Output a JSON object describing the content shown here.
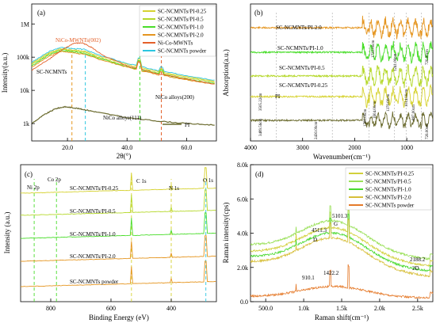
{
  "colors": {
    "pi": "#6b6b2f",
    "sc025": "#d6d230",
    "sc05": "#b5d82a",
    "sc10": "#49dd2a",
    "sc20": "#e5951f",
    "nico": "#e4602a",
    "powder": "#2cc6e0",
    "raman025": "#d2d03c",
    "raman05": "#99e057",
    "raman10": "#49d92f",
    "raman20": "#d7bf3a",
    "ramanPowder": "#e57a2a"
  },
  "chart_data": [
    {
      "type": "line",
      "panel": "(a)",
      "xlabel": "2θ(°)",
      "ylabel": "Intensity(a.u.)",
      "yscale": "log",
      "xlim": [
        8,
        70
      ],
      "xticks": [
        "20.0",
        "40.0",
        "60.0"
      ],
      "yticks": [
        "1k",
        "10k",
        "100k",
        "1M"
      ],
      "legend": [
        "SC-NCMNTs/PI-0.25",
        "SC-NCMNTs/PI-0.5",
        "SC-NCMNTs/PI-1.0",
        "SC-NCMNTs/PI-2.0",
        "Ni-Co-MWNTs",
        "SC-NCMNTs powder"
      ],
      "legend_position": "top-right",
      "annotations": [
        "NiCo-MWNTs(002)",
        "SC-NCMNTs",
        "NiCo alloys(111)",
        "NiCo alloys(200)",
        "PI"
      ],
      "series": [
        {
          "name": "SC-NCMNTs powder",
          "x": [
            8,
            14,
            18,
            22,
            26,
            30,
            40,
            50,
            60,
            70
          ],
          "y": [
            70000,
            150000,
            200000,
            180000,
            170000,
            120000,
            65000,
            40000,
            28000,
            20000
          ]
        },
        {
          "name": "SC-NCMNTs/PI-0.25",
          "x": [
            8,
            14,
            18,
            22,
            26,
            30,
            40,
            50,
            60,
            70
          ],
          "y": [
            65000,
            140000,
            180000,
            165000,
            150000,
            110000,
            60000,
            37000,
            26000,
            18000
          ]
        },
        {
          "name": "SC-NCMNTs/PI-0.5",
          "x": [
            8,
            14,
            18,
            22,
            26,
            30,
            40,
            50,
            60,
            70
          ],
          "y": [
            60000,
            130000,
            170000,
            155000,
            140000,
            100000,
            55000,
            34000,
            24000,
            17000
          ]
        },
        {
          "name": "SC-NCMNTs/PI-1.0",
          "x": [
            8,
            14,
            18,
            22,
            26,
            30,
            40,
            50,
            60,
            70
          ],
          "y": [
            55000,
            120000,
            160000,
            145000,
            130000,
            95000,
            52000,
            32000,
            22000,
            16000
          ]
        },
        {
          "name": "SC-NCMNTs/PI-2.0",
          "x": [
            8,
            14,
            18,
            22,
            26,
            30,
            40,
            50,
            60,
            70
          ],
          "y": [
            50000,
            110000,
            150000,
            135000,
            120000,
            90000,
            50000,
            30000,
            21000,
            15000
          ]
        },
        {
          "name": "Ni-Co-MWNTs",
          "x": [
            8,
            14,
            18,
            22,
            25,
            28,
            32,
            40,
            50,
            60,
            70
          ],
          "y": [
            40000,
            90000,
            160000,
            260000,
            270000,
            200000,
            110000,
            55000,
            32000,
            22000,
            15000
          ]
        },
        {
          "name": "PI",
          "x": [
            8,
            12,
            16,
            19,
            22,
            26,
            30,
            40,
            50,
            60,
            70
          ],
          "y": [
            1000,
            1800,
            2800,
            3200,
            3000,
            2600,
            2200,
            1500,
            1200,
            1000,
            900
          ]
        }
      ]
    },
    {
      "type": "line",
      "panel": "(b)",
      "xlabel": "Wavenumber(cm⁻¹)",
      "ylabel": "Absorption(a.u.)",
      "xlim": [
        4000,
        500
      ],
      "xticks": [
        "4000",
        "3000",
        "2000",
        "1000"
      ],
      "series_labels": [
        "SC-NCMNTs/PI-2.0",
        "SC-NCMNTs/PI-1.0",
        "SC-NCMNTs/PI-0.5",
        "SC-NCMNTs/PI-0.25",
        "PI"
      ],
      "annotations": [
        "1722.00cm",
        "1241.00cm",
        "720.00cm",
        "3505.22cm",
        "3489.56cm",
        "2430.00cm",
        "1780.00cm",
        "1604.00cm",
        "1370.00cm",
        "1014.00cm",
        "887.00cm",
        "726.00cm"
      ]
    },
    {
      "type": "line",
      "panel": "(c)",
      "xlabel": "Binding Energy (eV)",
      "ylabel": "Intensity (a.u.)",
      "xlim": [
        900,
        250
      ],
      "xticks": [
        "800",
        "600",
        "400"
      ],
      "series_labels": [
        "SC-NCMNTs/PI-0.25",
        "SC-NCMNTs/PI-0.5",
        "SC-NCMNTs/PI-1.0",
        "SC-NCMNTs/PI-2.0",
        "SC-NCMNTs powder"
      ],
      "annotations": [
        "Ni 2p",
        "Co 2p",
        "C 1s",
        "N 1s",
        "O 1s"
      ]
    },
    {
      "type": "line",
      "panel": "(d)",
      "xlabel": "Raman shift(cm⁻¹)",
      "ylabel": "Raman intensity(cps)",
      "xlim": [
        300,
        2700
      ],
      "ylim": [
        0,
        8000
      ],
      "xticks": [
        "500.0",
        "1.0k",
        "1.5k",
        "2.0k",
        "2.5k"
      ],
      "yticks": [
        "0.0",
        "2.0k",
        "4.0k",
        "6.0k",
        "8.0k"
      ],
      "legend": [
        "SC-NCMNTs/PI-0.25",
        "SC-NCMNTs/PI-0.5",
        "SC-NCMNTs/PI-1.0",
        "SC-NCMNTs/PI-2.0",
        "SC-NCMNTs powder"
      ],
      "legend_position": "top-right",
      "annotations": [
        "4511.3",
        "D",
        "5101.3",
        "G",
        "2188.2",
        "2D",
        "910.1",
        "1422.2"
      ]
    }
  ]
}
